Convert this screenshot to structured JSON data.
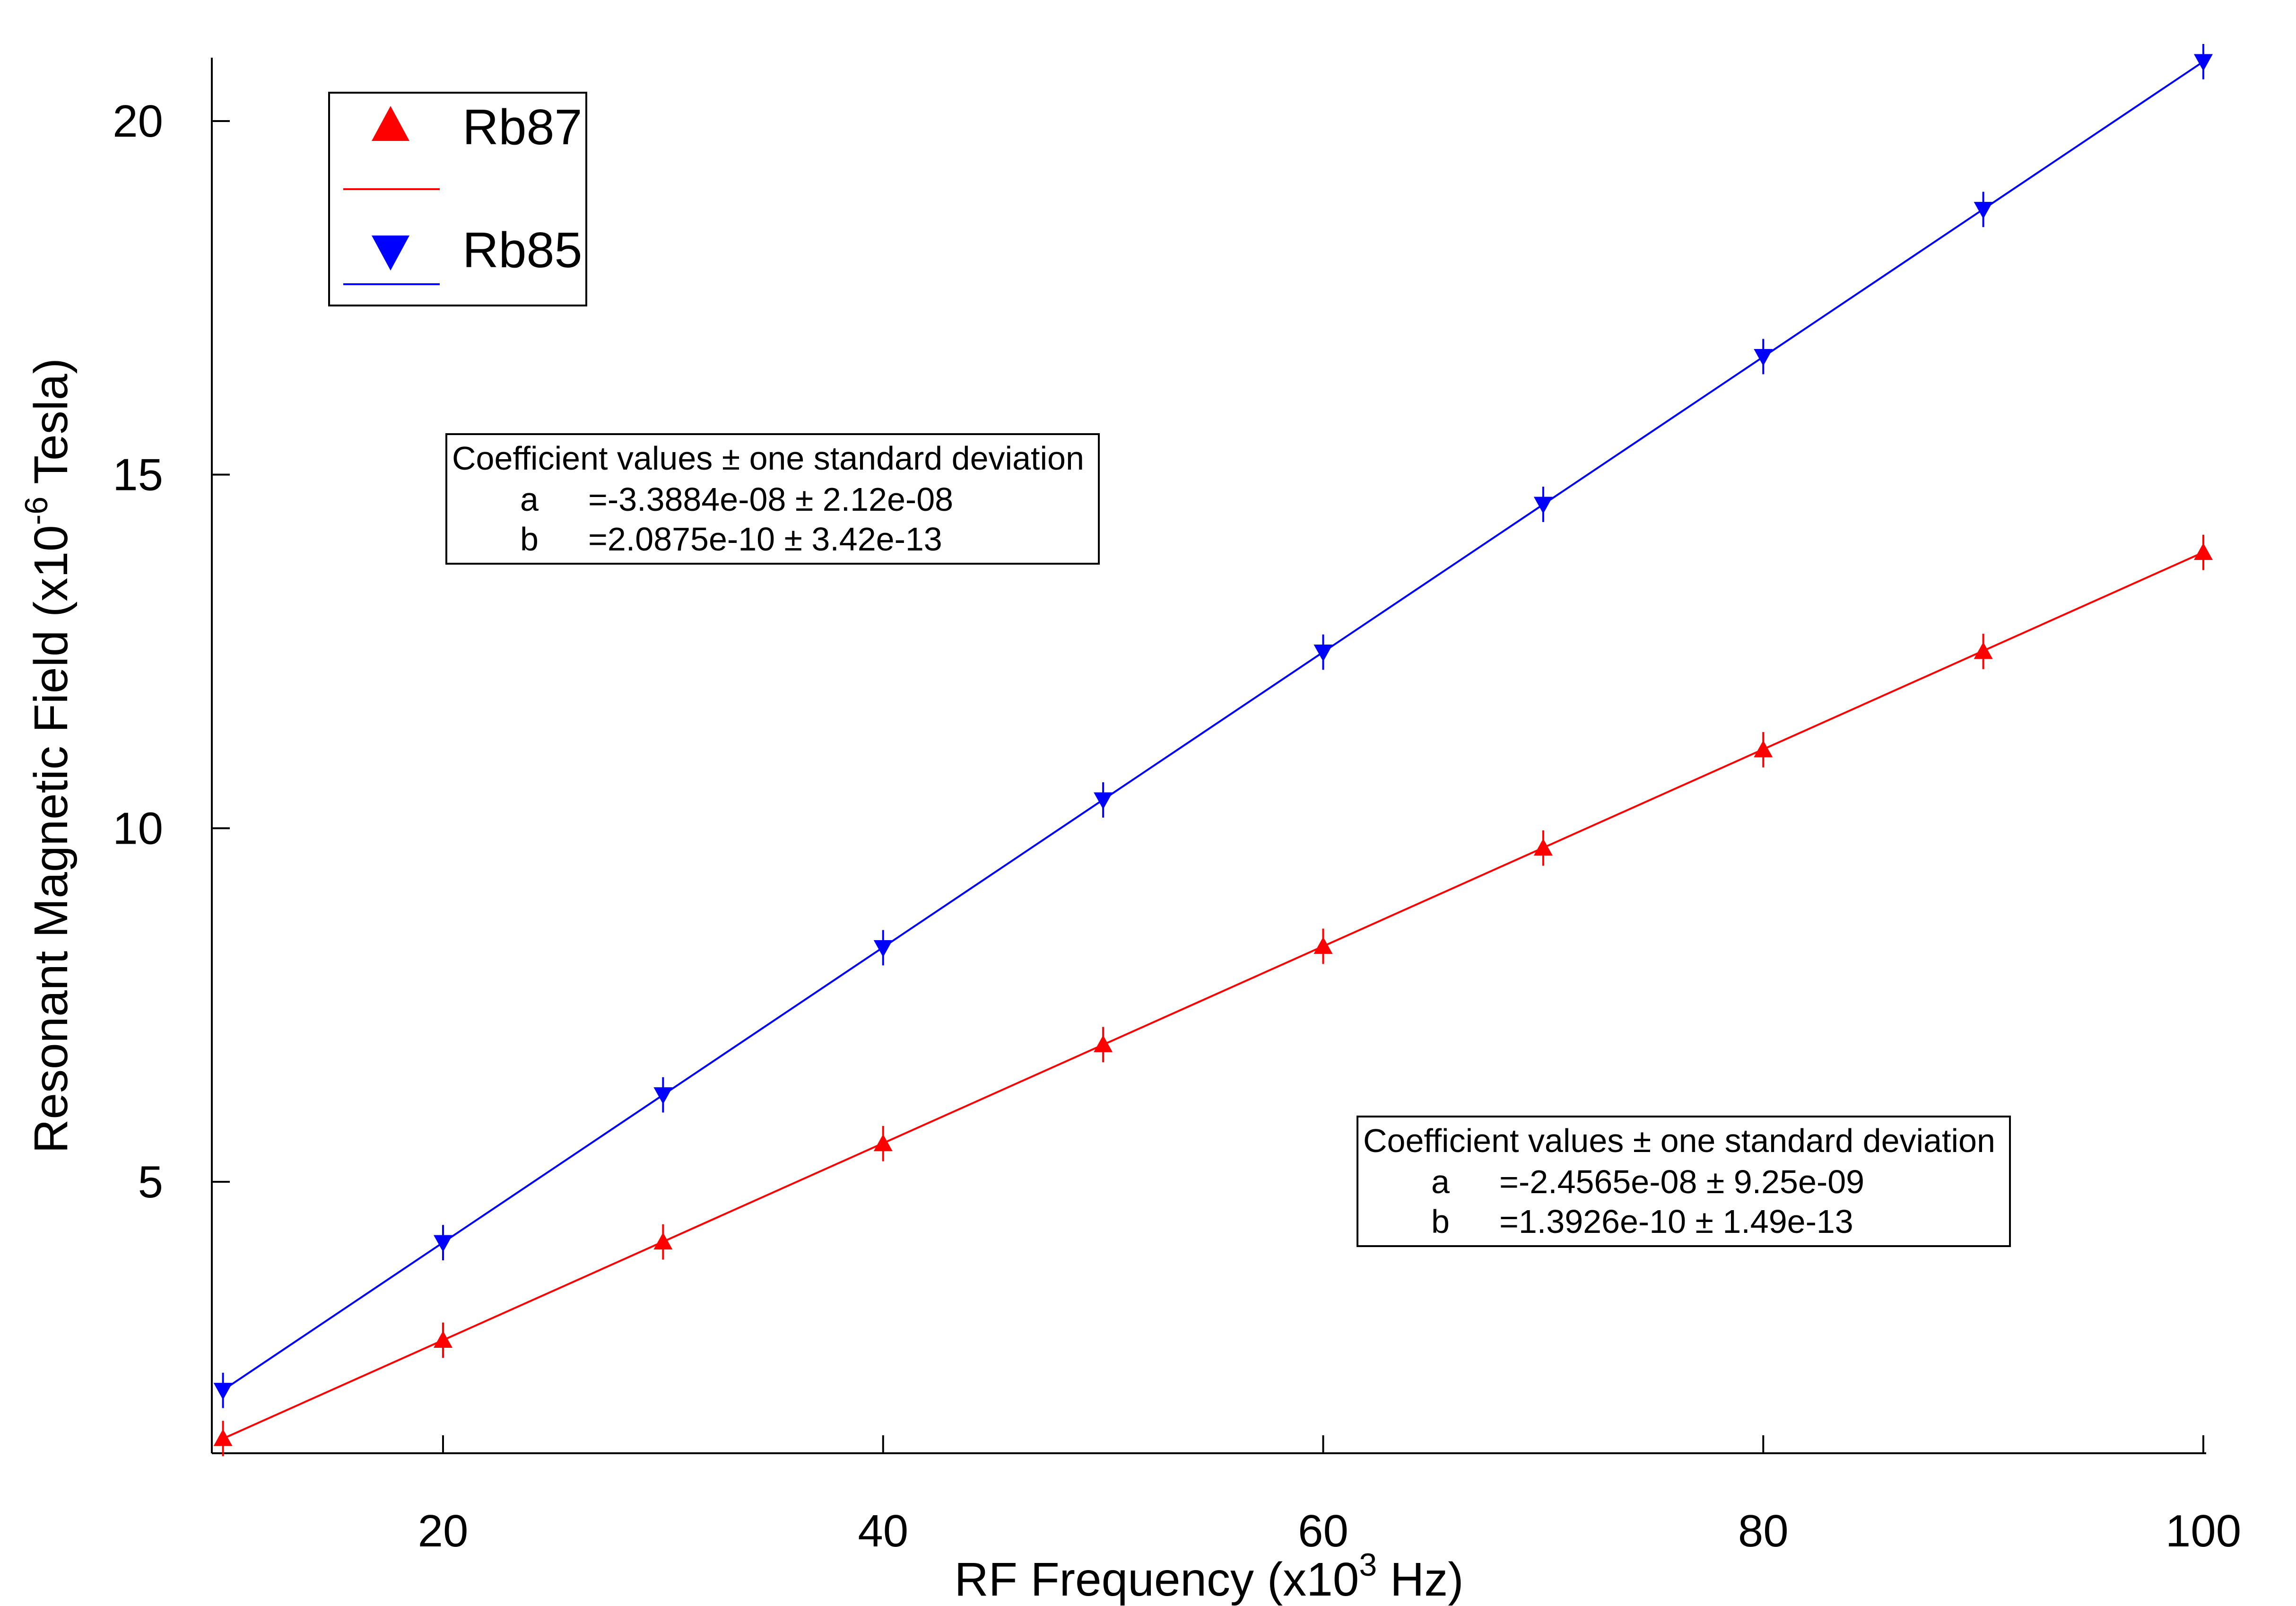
{
  "chart_data": {
    "type": "scatter",
    "x": [
      10,
      20,
      30,
      40,
      50,
      60,
      70,
      80,
      90,
      100
    ],
    "xlabel": "RF Frequency (x10",
    "xlabel_sup": "3",
    "xlabel_tail": " Hz)",
    "ylabel": "Resonant Magnetic Field (x10",
    "ylabel_sup": "-6",
    "ylabel_tail": " Tesla)",
    "xlim": [
      9.5,
      101
    ],
    "ylim": [
      1.2,
      20.9
    ],
    "x_ticks": [
      20,
      40,
      60,
      80,
      100
    ],
    "y_ticks": [
      5,
      10,
      15,
      20
    ],
    "grid": false,
    "legend_position": "top-left",
    "series": [
      {
        "name": "Rb87",
        "color": "#ff0000",
        "marker": "triangle-up",
        "values": [
          1.37,
          2.76,
          4.15,
          5.54,
          6.94,
          8.33,
          9.72,
          11.11,
          12.5,
          13.9
        ],
        "error": 0.25,
        "fit": {
          "a": -0.024565,
          "b": 0.13926
        }
      },
      {
        "name": "Rb85",
        "color": "#0000ff",
        "marker": "triangle-down",
        "values": [
          2.05,
          4.14,
          6.23,
          8.31,
          10.4,
          12.49,
          14.58,
          16.67,
          18.75,
          20.84
        ],
        "error": 0.25,
        "fit": {
          "a": -0.033884,
          "b": 0.20875
        }
      }
    ],
    "annotations": [
      {
        "target": "Rb85",
        "title": "Coefficient values ± one standard deviation",
        "a_label": "a",
        "a_value": "=-3.3884e-08 ± 2.12e-08",
        "b_label": "b",
        "b_value": "=2.0875e-10 ± 3.42e-13"
      },
      {
        "target": "Rb87",
        "title": "Coefficient values ± one standard deviation",
        "a_label": "a",
        "a_value": "=-2.4565e-08 ± 9.25e-09",
        "b_label": "b",
        "b_value": "=1.3926e-10 ± 1.49e-13"
      }
    ]
  }
}
